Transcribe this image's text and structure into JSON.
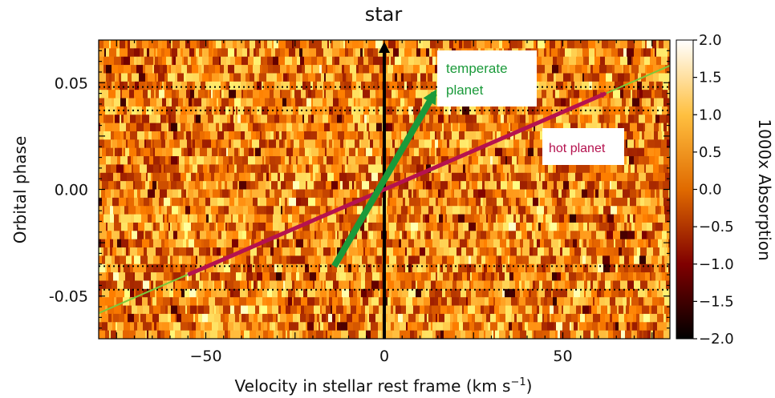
{
  "chart_data": {
    "type": "heatmap",
    "xlabel": "Velocity in stellar rest frame (km s",
    "xlabel_superscript": "−1",
    "xlabel_close": ")",
    "ylabel": "Orbital phase",
    "xlim": [
      -80,
      80
    ],
    "ylim": [
      -0.07,
      0.07
    ],
    "x_ticks": [
      -50,
      0,
      50
    ],
    "x_tick_labels": [
      "−50",
      "0",
      "50"
    ],
    "y_ticks": [
      -0.05,
      0.0,
      0.05
    ],
    "y_tick_labels": [
      "-0.05",
      "0.00",
      "0.05"
    ],
    "colorbar": {
      "label": "1000x Absorption",
      "range": [
        -2.0,
        2.0
      ],
      "ticks": [
        2.0,
        1.5,
        1.0,
        0.5,
        0.0,
        -0.5,
        -1.0,
        -1.5,
        -2.0
      ],
      "tick_labels": [
        "2.0",
        "1.5",
        "1.0",
        "0.5",
        "0.0",
        "−0.5",
        "−1.0",
        "−1.5",
        "−2.0"
      ],
      "colormap": "afmhot"
    },
    "dotted_phase_lines": [
      0.048,
      0.037,
      -0.036,
      -0.047
    ],
    "star": {
      "label": "star",
      "velocity": 0,
      "phase_range": [
        -0.07,
        0.07
      ],
      "color": "#000000"
    },
    "hot_planet": {
      "label": "hot planet",
      "color": "#b5124f",
      "arrow": {
        "from": [
          -55,
          -0.04
        ],
        "to": [
          62,
          0.045
        ]
      },
      "trail_color": "#7cc93b",
      "trail": {
        "from": [
          -80,
          -0.058
        ],
        "to": [
          80,
          0.058
        ]
      }
    },
    "temperate_planet": {
      "label_line1": "temperate",
      "label_line2": "planet",
      "color": "#1a9a3a",
      "arrow": {
        "from": [
          -14,
          -0.036
        ],
        "to": [
          14,
          0.045
        ]
      }
    }
  }
}
